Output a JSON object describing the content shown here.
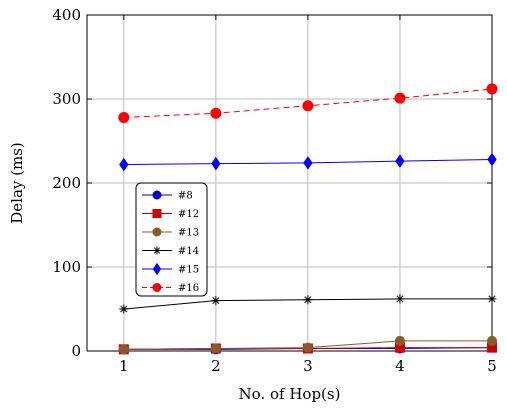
{
  "chart_data": {
    "type": "line",
    "title": "",
    "xlabel": "No. of Hop(s)",
    "ylabel": "Delay (ms)",
    "x": [
      1,
      2,
      3,
      4,
      5
    ],
    "xlim": [
      0.6,
      5
    ],
    "ylim": [
      0,
      400
    ],
    "xticks": [
      1,
      2,
      3,
      4,
      5
    ],
    "yticks": [
      0,
      100,
      200,
      300,
      400
    ],
    "grid": true,
    "legend_position": "left-middle",
    "series": [
      {
        "name": "#8",
        "values": [
          2,
          2,
          3,
          3,
          4
        ],
        "color": "#0000cc",
        "marker": "circle",
        "dash": false
      },
      {
        "name": "#12",
        "values": [
          2,
          3,
          3,
          4,
          4
        ],
        "color": "#cc0000",
        "marker": "square",
        "dash": false
      },
      {
        "name": "#13",
        "values": [
          2,
          3,
          4,
          12,
          12
        ],
        "color": "#8b5a2b",
        "marker": "circle",
        "dash": false
      },
      {
        "name": "#14",
        "values": [
          50,
          60,
          61,
          62,
          62
        ],
        "color": "#000000",
        "marker": "star",
        "dash": false
      },
      {
        "name": "#15",
        "values": [
          222,
          223,
          224,
          226,
          228
        ],
        "color": "#0000ff",
        "marker": "diamond",
        "dash": false
      },
      {
        "name": "#16",
        "values": [
          278,
          283,
          292,
          301,
          312
        ],
        "color": "#ff0000",
        "marker": "circle",
        "dash": true
      }
    ]
  }
}
